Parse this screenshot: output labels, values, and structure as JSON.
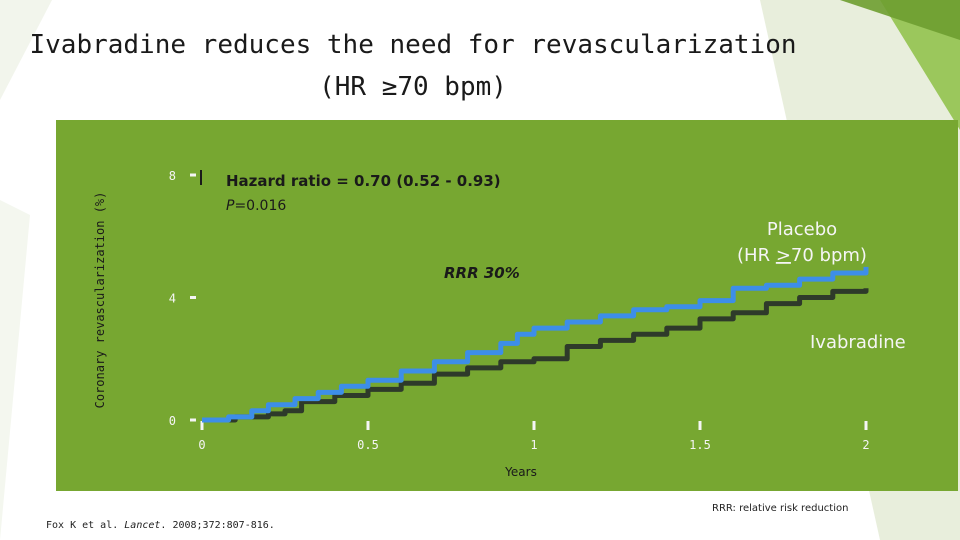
{
  "title_line1": "Ivabradine reduces the need for revascularization",
  "title_line2": "(HR ≥70 bpm)",
  "footnote": "RRR: relative risk reduction",
  "citation": {
    "prefix": "Fox K et al. ",
    "journal": "Lancet",
    "suffix": ". 2008;372:807-816."
  },
  "colors": {
    "panel": "#77a731",
    "placebo": "#3d8ee8",
    "ivabradine": "#2e3a2a",
    "label_text": "#f5f5f5",
    "annotation_text": "#1a1a1a"
  },
  "chart_data": {
    "type": "line",
    "xlabel": "Years",
    "ylabel": "Coronary revascularization (%)",
    "xlim": [
      0,
      2
    ],
    "ylim": [
      0,
      8
    ],
    "x_ticks": [
      "0",
      "0.5",
      "1",
      "1.5",
      "2"
    ],
    "y_ticks": [
      "0",
      "4",
      "8"
    ],
    "annotations": {
      "hazard_ratio": "Hazard ratio = 0.70 (0.52 - 0.93)",
      "p_value_italic": "P",
      "p_value_rest": "=0.016",
      "rrr": "RRR 30%"
    },
    "series": [
      {
        "name": "Placebo",
        "label_line1": "Placebo",
        "label_line2_prefix": "(HR ",
        "label_line2_underlined": ">",
        "label_line2_suffix": "70 bpm)",
        "x": [
          0,
          0.08,
          0.15,
          0.2,
          0.28,
          0.35,
          0.42,
          0.5,
          0.6,
          0.7,
          0.8,
          0.9,
          0.95,
          1.0,
          1.1,
          1.2,
          1.3,
          1.4,
          1.5,
          1.6,
          1.7,
          1.8,
          1.9,
          2.0
        ],
        "y": [
          0,
          0.1,
          0.3,
          0.5,
          0.7,
          0.9,
          1.1,
          1.3,
          1.6,
          1.9,
          2.2,
          2.5,
          2.8,
          3.0,
          3.2,
          3.4,
          3.6,
          3.7,
          3.9,
          4.3,
          4.4,
          4.6,
          4.8,
          5.0
        ]
      },
      {
        "name": "Ivabradine",
        "x": [
          0,
          0.1,
          0.2,
          0.25,
          0.3,
          0.4,
          0.5,
          0.6,
          0.7,
          0.8,
          0.9,
          1.0,
          1.1,
          1.2,
          1.3,
          1.4,
          1.5,
          1.6,
          1.7,
          1.8,
          1.9,
          2.0
        ],
        "y": [
          0,
          0.1,
          0.2,
          0.3,
          0.6,
          0.8,
          1.0,
          1.2,
          1.5,
          1.7,
          1.9,
          2.0,
          2.4,
          2.6,
          2.8,
          3.0,
          3.3,
          3.5,
          3.8,
          4.0,
          4.2,
          4.3
        ]
      }
    ]
  }
}
